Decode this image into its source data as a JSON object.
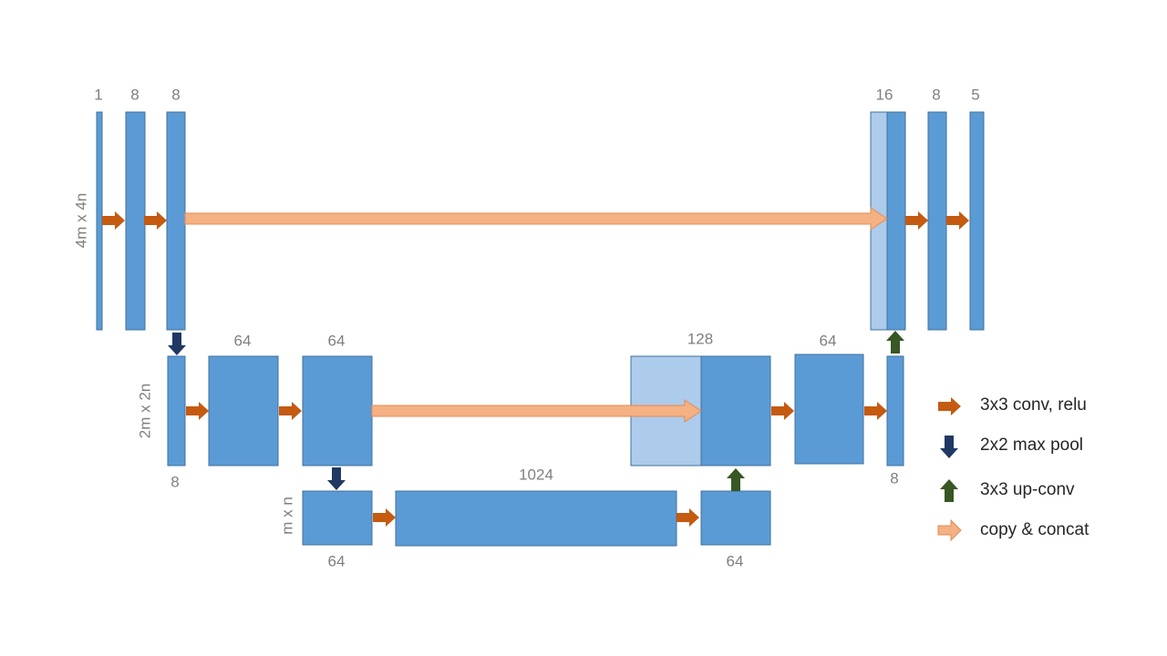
{
  "levels": [
    {
      "size_label": "4m x 4n"
    },
    {
      "size_label": "2m x 2n"
    },
    {
      "size_label": "m x n"
    }
  ],
  "blocks": [
    {
      "label": "1"
    },
    {
      "label": "8"
    },
    {
      "label": "8"
    },
    {
      "label": "16"
    },
    {
      "label": "8"
    },
    {
      "label": "5"
    },
    {
      "label": "8"
    },
    {
      "label": "64"
    },
    {
      "label": "64"
    },
    {
      "label": "128"
    },
    {
      "label": "64"
    },
    {
      "label": "8"
    },
    {
      "label": "64"
    },
    {
      "label": "1024"
    },
    {
      "label": "64"
    }
  ],
  "legend": [
    {
      "label": "3x3 conv, relu"
    },
    {
      "label": "2x2 max pool"
    },
    {
      "label": "3x3 up-conv"
    },
    {
      "label": "copy & concat"
    }
  ]
}
